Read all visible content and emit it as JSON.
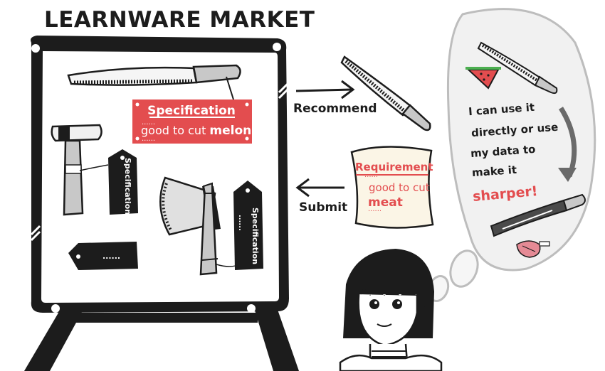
{
  "title": "LEARNWARE MARKET",
  "spec_card": {
    "title": "Specification",
    "text_prefix": "good to cut ",
    "text_bold": "melon",
    "dots": "......"
  },
  "tags": {
    "hammer_tag": "Specification",
    "axe_tag": "Specification",
    "dots": "......"
  },
  "arrows": {
    "recommend_label": "Recommend",
    "submit_label": "Submit"
  },
  "requirement": {
    "title": "Requirement",
    "text": "good to cut",
    "bold": "meat",
    "dots": "......"
  },
  "thought": {
    "line1": "I can use it",
    "line2": "directly or use",
    "line3": "my data to",
    "line4": "make it",
    "line5": "sharper!"
  },
  "colors": {
    "accent_red": "#e34d4f",
    "ink": "#1c1c1c",
    "paper": "#fbf5e6",
    "bubble": "#f1f1f1"
  }
}
